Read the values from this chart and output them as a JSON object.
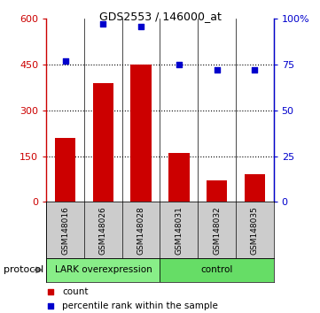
{
  "title": "GDS2553 / 146000_at",
  "samples": [
    "GSM148016",
    "GSM148026",
    "GSM148028",
    "GSM148031",
    "GSM148032",
    "GSM148035"
  ],
  "counts": [
    210,
    390,
    450,
    160,
    70,
    90
  ],
  "percentile_ranks": [
    77,
    97,
    96,
    75,
    72,
    72
  ],
  "ylim_left": [
    0,
    600
  ],
  "ylim_right": [
    0,
    100
  ],
  "yticks_left": [
    0,
    150,
    300,
    450,
    600
  ],
  "yticks_right": [
    0,
    25,
    50,
    75,
    100
  ],
  "ytick_labels_left": [
    "0",
    "150",
    "300",
    "450",
    "600"
  ],
  "ytick_labels_right": [
    "0",
    "25",
    "50",
    "75",
    "100%"
  ],
  "hlines": [
    150,
    300,
    450
  ],
  "bar_color": "#cc0000",
  "scatter_color": "#0000cc",
  "groups": [
    {
      "label": "LARK overexpression",
      "indices": [
        0,
        1,
        2
      ],
      "color": "#88ee88"
    },
    {
      "label": "control",
      "indices": [
        3,
        4,
        5
      ],
      "color": "#66dd66"
    }
  ],
  "protocol_label": "protocol",
  "legend_items": [
    {
      "color": "#cc0000",
      "label": "count"
    },
    {
      "color": "#0000cc",
      "label": "percentile rank within the sample"
    }
  ],
  "left_axis_color": "#cc0000",
  "right_axis_color": "#0000cc",
  "bar_width": 0.55,
  "names_bg_color": "#cccccc",
  "fig_bg_color": "#ffffff"
}
